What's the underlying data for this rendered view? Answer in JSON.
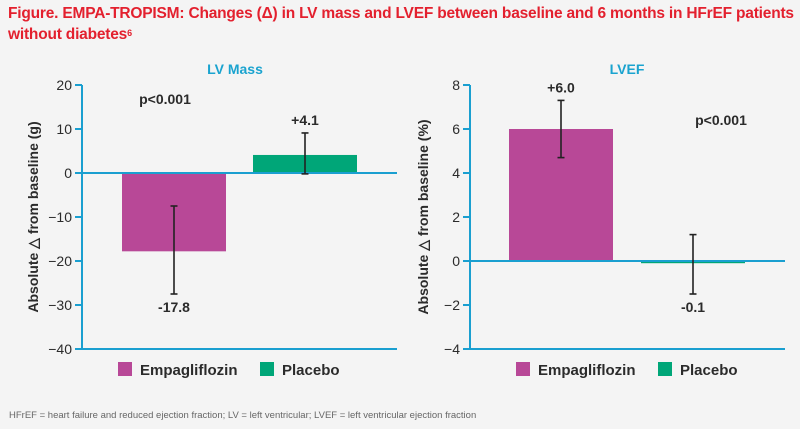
{
  "figure": {
    "title": "Figure. EMPA-TROPISM: Changes (Δ) in LV mass and LVEF between baseline and 6 months in HFrEF patients without diabetes",
    "title_superscript": "6",
    "footnote": "HFrEF = heart failure and reduced ejection fraction; LV = left ventricular; LVEF = left ventricular ejection fraction"
  },
  "colors": {
    "title": "#e3202e",
    "panel_title": "#1aa3cf",
    "axis": "#1a9fd0",
    "empagliflozin": "#b84897",
    "placebo": "#00a678",
    "text": "#2b2b2b"
  },
  "chart_data": [
    {
      "type": "bar",
      "title": "LV Mass",
      "ylabel": "Absolute △ from baseline (g)",
      "xlabel": "",
      "ylim": [
        -40,
        20
      ],
      "yticks": [
        20,
        10,
        0,
        -10,
        -20,
        -30,
        -40
      ],
      "ytick_labels": [
        "20",
        "10",
        "0",
        "−10",
        "−20",
        "−30",
        "−40"
      ],
      "categories": [
        "Empagliflozin",
        "Placebo"
      ],
      "values": [
        -17.8,
        4.1
      ],
      "value_labels": [
        "-17.8",
        "+4.1"
      ],
      "error_low": [
        -27.5,
        -0.2
      ],
      "error_high": [
        -7.5,
        9.1
      ],
      "annotation": "p<0.001",
      "legend": [
        "Empagliflozin",
        "Placebo"
      ],
      "legend_position": "bottom",
      "grid": false
    },
    {
      "type": "bar",
      "title": "LVEF",
      "ylabel": "Absolute △ from baseline (%)",
      "xlabel": "",
      "ylim": [
        -4,
        8
      ],
      "yticks": [
        8,
        6,
        4,
        2,
        0,
        -2,
        -4
      ],
      "ytick_labels": [
        "8",
        "6",
        "4",
        "2",
        "0",
        "−2",
        "−4"
      ],
      "categories": [
        "Empagliflozin",
        "Placebo"
      ],
      "values": [
        6.0,
        -0.1
      ],
      "value_labels": [
        "+6.0",
        "-0.1"
      ],
      "error_low": [
        4.7,
        -1.5
      ],
      "error_high": [
        7.3,
        1.2
      ],
      "annotation": "p<0.001",
      "legend": [
        "Empagliflozin",
        "Placebo"
      ],
      "legend_position": "bottom",
      "grid": false
    }
  ]
}
